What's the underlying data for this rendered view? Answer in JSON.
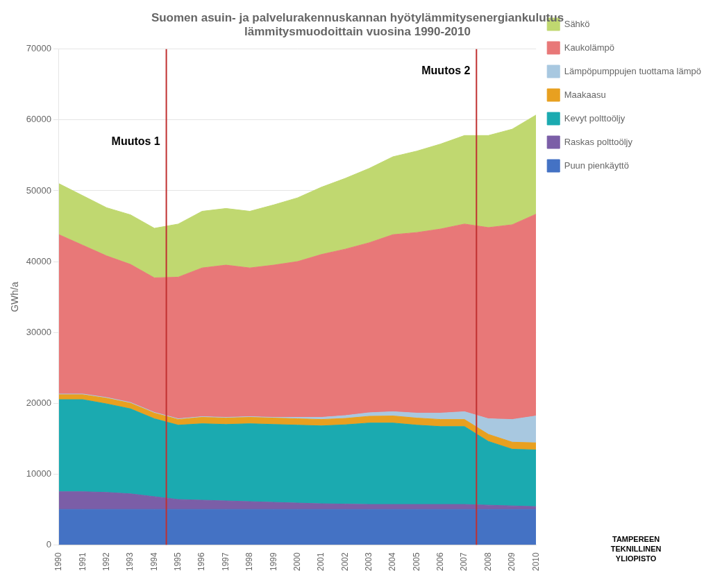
{
  "chart_data": {
    "type": "area",
    "stacked": true,
    "title": "Suomen asuin- ja palvelurakennuskannan hyötylämmitysenergiankulutus\nlämmitysmuodoittain vuosina 1990-2010",
    "ylabel": "GWh/a",
    "x": [
      1990,
      1991,
      1992,
      1993,
      1994,
      1995,
      1996,
      1997,
      1998,
      1999,
      2000,
      2001,
      2002,
      2003,
      2004,
      2005,
      2006,
      2007,
      2008,
      2009,
      2010
    ],
    "series": [
      {
        "name": "Puun pienkäyttö",
        "color": "#4472C4",
        "values": [
          5000,
          5000,
          5000,
          5000,
          5000,
          5000,
          5000,
          5000,
          5000,
          5000,
          5000,
          5000,
          5000,
          5000,
          5000,
          5000,
          5000,
          5000,
          5000,
          5000,
          5000
        ]
      },
      {
        "name": "Raskas polttoöljy",
        "color": "#7B5EA7",
        "values": [
          2500,
          2500,
          2400,
          2200,
          1800,
          1400,
          1300,
          1200,
          1100,
          1000,
          900,
          800,
          750,
          700,
          700,
          700,
          700,
          700,
          600,
          500,
          400
        ]
      },
      {
        "name": "Kevyt polttoöljy",
        "color": "#1BAAB0",
        "values": [
          13000,
          13000,
          12500,
          12000,
          11000,
          10500,
          10800,
          10800,
          11000,
          11000,
          11000,
          11000,
          11200,
          11500,
          11500,
          11200,
          11000,
          11000,
          9000,
          8000,
          8000
        ]
      },
      {
        "name": "Maakaasu",
        "color": "#E8A020",
        "values": [
          700,
          700,
          800,
          800,
          800,
          800,
          900,
          900,
          900,
          900,
          900,
          900,
          900,
          950,
          1000,
          1000,
          1000,
          1000,
          1000,
          1000,
          1000
        ]
      },
      {
        "name": "Lämpöpumppujen tuottama lämpö",
        "color": "#A8C8E0",
        "values": [
          100,
          100,
          100,
          100,
          100,
          100,
          100,
          100,
          100,
          100,
          200,
          300,
          400,
          500,
          600,
          700,
          900,
          1100,
          2200,
          3200,
          3800
        ]
      },
      {
        "name": "Kaukolämpö",
        "color": "#E87878",
        "values": [
          22500,
          21000,
          20000,
          19500,
          19000,
          20000,
          21000,
          21500,
          21000,
          21500,
          22000,
          23000,
          23500,
          24000,
          25000,
          25500,
          26000,
          26500,
          27000,
          27500,
          28500
        ]
      },
      {
        "name": "Sähkö",
        "color": "#C0D870",
        "values": [
          7200,
          7000,
          6800,
          7000,
          7000,
          7500,
          8000,
          8000,
          8000,
          8500,
          9000,
          9500,
          10000,
          10500,
          11000,
          11500,
          12000,
          12500,
          13000,
          13500,
          14000
        ]
      }
    ],
    "xlim": [
      1990,
      2010
    ],
    "xticks": [
      1990,
      1991,
      1992,
      1993,
      1994,
      1995,
      1996,
      1997,
      1998,
      1999,
      2000,
      2001,
      2002,
      2003,
      2004,
      2005,
      2006,
      2007,
      2008,
      2009,
      2010
    ],
    "ylim": [
      0,
      70000
    ],
    "yticks": [
      0,
      10000,
      20000,
      30000,
      40000,
      50000,
      60000,
      70000
    ],
    "grid": "y",
    "legend": "right",
    "annotations": [
      {
        "type": "vline",
        "x": 1994.5,
        "color": "#C03030",
        "label": "Muutos 1",
        "label_x": 1992.2,
        "label_y": 56500
      },
      {
        "type": "vline",
        "x": 2007.5,
        "color": "#C03030",
        "label": "Muutos 2",
        "label_x": 2005.2,
        "label_y": 66500
      },
      {
        "type": "text",
        "text": "TAMPEREEN\nTEKNILLINEN\nYLIOPISTO"
      }
    ]
  }
}
